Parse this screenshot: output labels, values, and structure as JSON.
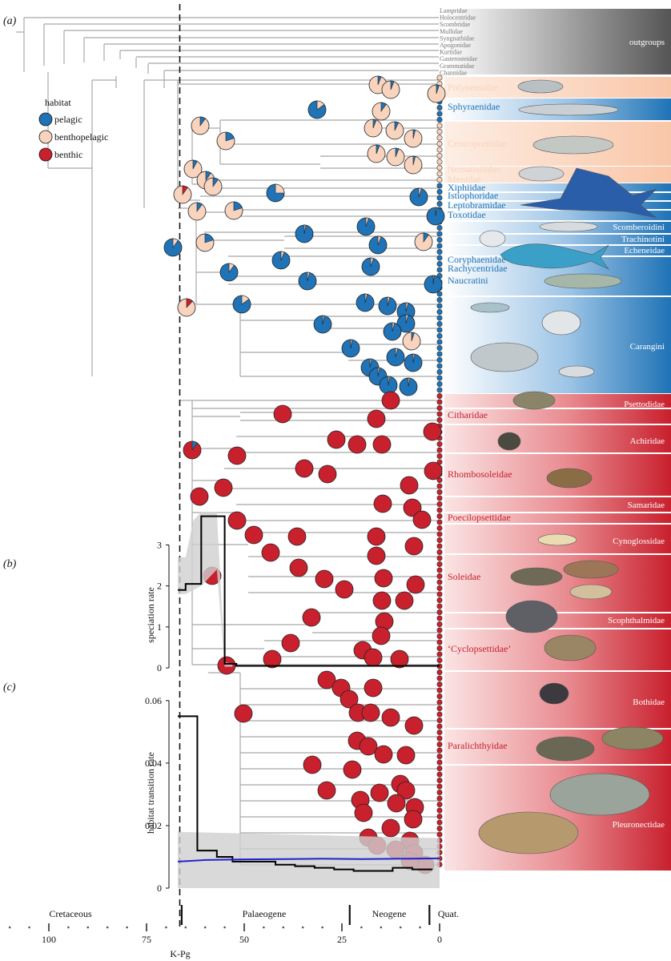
{
  "panels": {
    "a": "(a)",
    "b": "(b)",
    "c": "(c)"
  },
  "legend": {
    "title": "habitat",
    "items": [
      {
        "label": "pelagic",
        "color": "#1f73b6"
      },
      {
        "label": "benthopelagic",
        "color": "#f8d3bd"
      },
      {
        "label": "benthic",
        "color": "#c8202d"
      }
    ]
  },
  "outgroup_taxa": [
    "Lampridae",
    "Holocentridae",
    "Scombridae",
    "Mullidae",
    "Syngnathidae",
    "Apogonidae",
    "Kurtidae",
    "Gasterosteidae",
    "Grammatidae",
    "Channidae"
  ],
  "outgroups_label": "outgroups",
  "family_labels": [
    {
      "text": "Polynemidae",
      "habitat": "benthopelagic"
    },
    {
      "text": "Sphyraenidae",
      "habitat": "pelagic"
    },
    {
      "text": "Centropomidae",
      "habitat": "benthopelagic"
    },
    {
      "text": "Nematistiidae",
      "habitat": "benthopelagic"
    },
    {
      "text": "Menidae",
      "habitat": "benthopelagic"
    },
    {
      "text": "Xiphiidae",
      "habitat": "pelagic"
    },
    {
      "text": "Istiophoridae",
      "habitat": "pelagic"
    },
    {
      "text": "Leptobramidae",
      "habitat": "pelagic"
    },
    {
      "text": "Toxotidae",
      "habitat": "pelagic"
    },
    {
      "text": "Coryphaenidae",
      "habitat": "pelagic"
    },
    {
      "text": "Rachycentridae",
      "habitat": "pelagic"
    },
    {
      "text": "Naucratini",
      "habitat": "pelagic"
    },
    {
      "text": "Citharidae",
      "habitat": "benthic"
    },
    {
      "text": "Rhombosoleidae",
      "habitat": "benthic"
    },
    {
      "text": "Poecilopsettidae",
      "habitat": "benthic"
    },
    {
      "text": "Soleidae",
      "habitat": "benthic"
    },
    {
      "text": "‘Cyclopsettidae’",
      "habitat": "benthic"
    },
    {
      "text": "Paralichthyidae",
      "habitat": "benthic"
    }
  ],
  "band_labels": [
    "Scomberoidini",
    "Trachinotini",
    "Echeneidae",
    "Carangini",
    "Psettodidae",
    "Achiridae",
    "Samaridae",
    "Cynoglossidae",
    "Scophthalmidae",
    "Bothidae",
    "Pleuronectidae"
  ],
  "time_axis": {
    "ticks": [
      "100",
      "75",
      "50",
      "25",
      "0"
    ],
    "periods": [
      "Cretaceous",
      "Palaeogene",
      "Neogene",
      "Quat."
    ],
    "kpg_label": "K-Pg"
  },
  "chart_data": [
    {
      "type": "line",
      "panel": "(b)",
      "ylabel": "speciation rate",
      "y_ticks": [
        "0",
        "1",
        "2",
        "3"
      ],
      "ylim": [
        0,
        3.4
      ],
      "x_unit": "Ma before present",
      "series": [
        {
          "x": [
            67,
            65,
            65,
            61,
            61,
            55,
            55,
            52,
            52,
            0
          ],
          "y": [
            1.9,
            1.9,
            2.05,
            2.05,
            3.7,
            3.7,
            0.1,
            0.1,
            0.05,
            0.05
          ]
        }
      ],
      "ci_band": {
        "x": [
          67,
          65,
          63,
          61,
          59,
          57,
          55,
          53
        ],
        "upper": [
          2.7,
          2.7,
          3.6,
          3.8,
          3.8,
          3.8,
          0.15,
          0.1
        ],
        "lower": [
          1.8,
          1.8,
          1.9,
          2.0,
          2.2,
          2.4,
          0.03,
          0.03
        ]
      }
    },
    {
      "type": "line",
      "panel": "(c)",
      "ylabel": "habitat transition rate",
      "y_ticks": [
        "0",
        "0.02",
        "0.04",
        "0.06"
      ],
      "ylim": [
        0,
        0.062
      ],
      "x_unit": "Ma before present",
      "series": [
        {
          "color": "#000000",
          "x": [
            67,
            62,
            62,
            57,
            57,
            53,
            53,
            47,
            47,
            42,
            42,
            37,
            37,
            32,
            32,
            27,
            27,
            22,
            22,
            17,
            17,
            12,
            12,
            7,
            7,
            2,
            2
          ],
          "y": [
            0.055,
            0.055,
            0.012,
            0.012,
            0.01,
            0.01,
            0.0085,
            0.0085,
            0.0085,
            0.0085,
            0.0075,
            0.0075,
            0.007,
            0.007,
            0.0065,
            0.0065,
            0.006,
            0.006,
            0.0055,
            0.0055,
            0.0055,
            0.0055,
            0.0065,
            0.0065,
            0.006,
            0.006,
            0.0058
          ]
        },
        {
          "color": "#2222cc",
          "x": [
            67,
            60,
            50,
            40,
            30,
            20,
            10,
            0
          ],
          "y": [
            0.0085,
            0.009,
            0.0092,
            0.0093,
            0.0094,
            0.0093,
            0.0094,
            0.0095
          ]
        }
      ],
      "ci_band": {
        "x": [
          67,
          0
        ],
        "upper": [
          0.018,
          0.016
        ],
        "lower": [
          0.0,
          0.0
        ]
      }
    }
  ]
}
